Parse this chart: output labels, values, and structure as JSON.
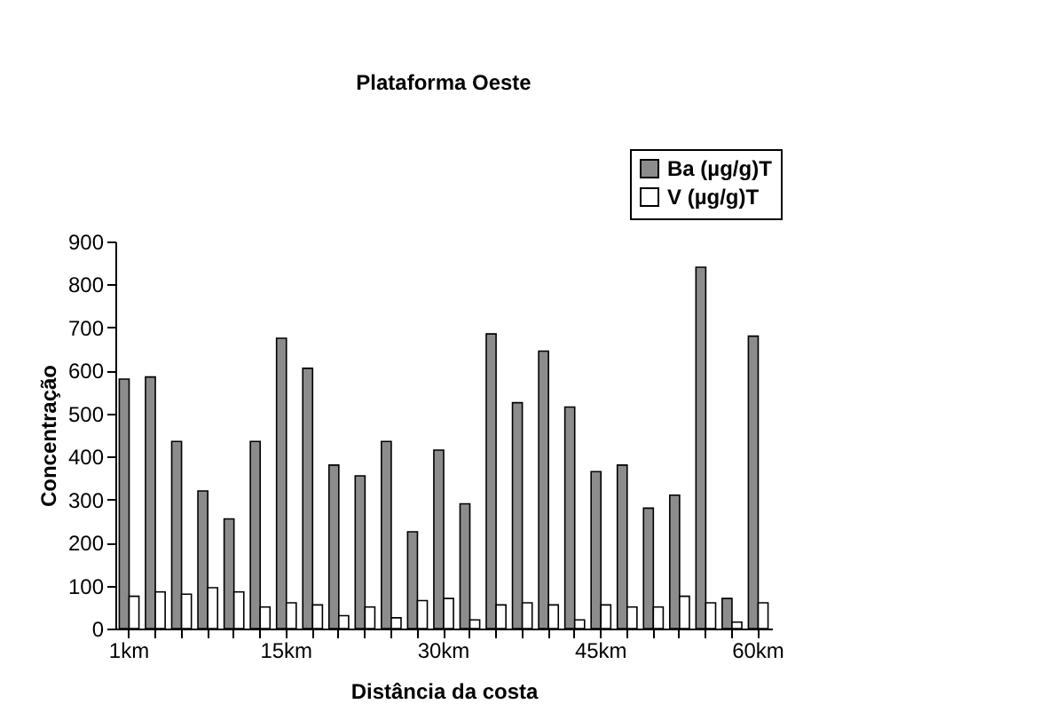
{
  "chart_data": {
    "type": "bar",
    "title": "Plataforma Oeste",
    "xlabel": "Distância da costa",
    "ylabel": "Concentração",
    "categories": [
      "1km",
      null,
      null,
      null,
      null,
      null,
      "15km",
      null,
      null,
      null,
      null,
      null,
      "30km",
      null,
      null,
      null,
      null,
      null,
      "45km",
      null,
      null,
      null,
      null,
      null,
      "60km"
    ],
    "series": [
      {
        "name": "Ba (µg/g)T",
        "color": "#8c8c8c",
        "values": [
          580,
          585,
          435,
          320,
          255,
          435,
          675,
          605,
          380,
          355,
          435,
          225,
          415,
          290,
          685,
          525,
          645,
          515,
          365,
          380,
          280,
          310,
          840,
          70,
          680
        ]
      },
      {
        "name": "V (µg/g)T",
        "color": "#ffffff",
        "values": [
          75,
          85,
          80,
          95,
          85,
          50,
          60,
          55,
          30,
          50,
          25,
          65,
          70,
          20,
          55,
          60,
          55,
          20,
          55,
          50,
          50,
          75,
          60,
          15,
          60
        ]
      }
    ],
    "ylim": [
      0,
      900
    ],
    "yticks": [
      0,
      100,
      200,
      300,
      400,
      500,
      600,
      700,
      800,
      900
    ],
    "grid": false,
    "legend": "top right"
  }
}
